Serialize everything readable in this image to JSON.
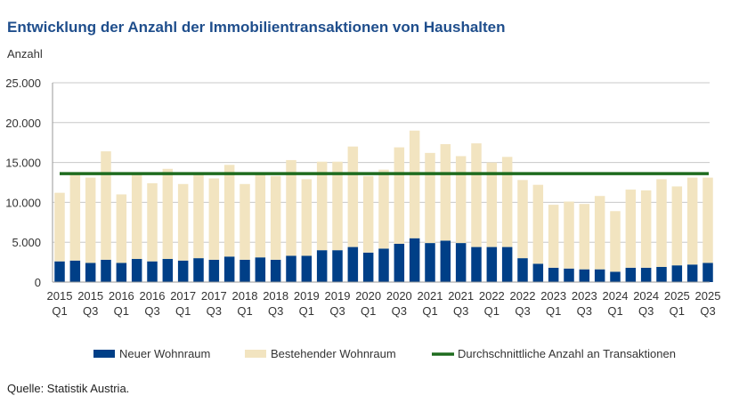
{
  "chart_data": {
    "type": "bar",
    "stacked": true,
    "title": "Entwicklung der Anzahl der Immobilientransaktionen von Haushalten",
    "ylabel": "Anzahl",
    "xlabel": "",
    "ylim": [
      0,
      25000
    ],
    "yticks": [
      "0",
      "5.000",
      "10.000",
      "15.000",
      "20.000",
      "25.000"
    ],
    "ytick_values": [
      0,
      5000,
      10000,
      15000,
      20000,
      25000
    ],
    "grid": true,
    "legend_position": "bottom",
    "categories": [
      "2015 Q1",
      "2015 Q2",
      "2015 Q3",
      "2015 Q4",
      "2016 Q1",
      "2016 Q2",
      "2016 Q3",
      "2016 Q4",
      "2017 Q1",
      "2017 Q2",
      "2017 Q3",
      "2017 Q4",
      "2018 Q1",
      "2018 Q2",
      "2018 Q3",
      "2018 Q4",
      "2019 Q1",
      "2019 Q2",
      "2019 Q3",
      "2019 Q4",
      "2020 Q1",
      "2020 Q2",
      "2020 Q3",
      "2020 Q4",
      "2021 Q1",
      "2021 Q2",
      "2021 Q3",
      "2021 Q4",
      "2022 Q1",
      "2022 Q2",
      "2022 Q3",
      "2022 Q4",
      "2023 Q1",
      "2023 Q2",
      "2023 Q3",
      "2023 Q4",
      "2024 Q1",
      "2024 Q2",
      "2024 Q3",
      "2024 Q4",
      "2025 Q1",
      "2025 Q2",
      "2025 Q3"
    ],
    "xtick_labels": [
      "2015|Q1",
      "2015|Q3",
      "2016|Q1",
      "2016|Q3",
      "2017|Q1",
      "2017|Q3",
      "2018|Q1",
      "2018|Q3",
      "2019|Q1",
      "2019|Q3",
      "2020|Q1",
      "2020|Q3",
      "2021|Q1",
      "2021|Q3",
      "2022|Q1",
      "2022|Q3",
      "2023|Q1",
      "2023|Q3",
      "2024|Q1",
      "2024|Q3",
      "2025|Q1",
      "2025|Q3"
    ],
    "series": [
      {
        "name": "Neuer Wohnraum",
        "color": "#003f87",
        "values": [
          2600,
          2700,
          2400,
          2800,
          2400,
          2900,
          2600,
          2900,
          2700,
          3000,
          2800,
          3200,
          2800,
          3100,
          2800,
          3300,
          3300,
          4000,
          4000,
          4400,
          3700,
          4200,
          4800,
          5500,
          4900,
          5200,
          4900,
          4400,
          4400,
          4400,
          3000,
          2300,
          1800,
          1700,
          1600,
          1600,
          1300,
          1800,
          1800,
          1900,
          2100,
          2200,
          2400
        ]
      },
      {
        "name": "Bestehender Wohnraum",
        "color": "#f2e4c0",
        "values": [
          8600,
          10800,
          10700,
          13600,
          8600,
          10600,
          9800,
          11300,
          9600,
          10500,
          10200,
          11500,
          9500,
          10400,
          10500,
          12000,
          9600,
          11100,
          11100,
          12600,
          9600,
          9900,
          12100,
          13500,
          11300,
          12100,
          10900,
          13000,
          10600,
          11300,
          9800,
          9900,
          7900,
          8400,
          8200,
          9200,
          7600,
          9800,
          9700,
          11000,
          9900,
          10900,
          10700
        ]
      }
    ],
    "average_line": {
      "name": "Durchschnittliche Anzahl an Transaktionen",
      "value": 13600,
      "color": "#1e6b1e"
    }
  },
  "source": "Quelle: Statistik Austria."
}
